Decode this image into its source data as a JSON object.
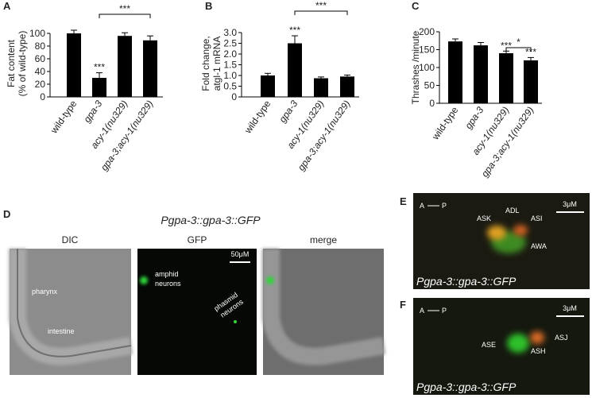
{
  "chart_data": [
    {
      "type": "bar",
      "panel": "A",
      "ylabel": [
        "Fat content",
        "(% of wild-type)"
      ],
      "categories": [
        "wild-type",
        "gpa-3",
        "acy-1(nu329)",
        "gpa-3;acy-1(nu329)"
      ],
      "values": [
        100,
        30,
        96,
        89
      ],
      "errors": [
        5,
        8,
        5,
        7
      ],
      "color": "#000000",
      "ylim": [
        0,
        110
      ],
      "yticks": [
        0,
        20,
        40,
        60,
        80,
        100
      ],
      "annotations": [
        "***",
        "***"
      ]
    },
    {
      "type": "bar",
      "panel": "B",
      "ylabel": [
        "Fold change,",
        "atgl-1 mRNA"
      ],
      "categories": [
        "wild-type",
        "gpa-3",
        "acy-1(nu329)",
        "gpa-3;acy-1(nu329)"
      ],
      "values": [
        1.0,
        2.5,
        0.87,
        0.95
      ],
      "errors": [
        0.1,
        0.35,
        0.06,
        0.07
      ],
      "color": "#000000",
      "ylim": [
        0,
        3.1
      ],
      "yticks": [
        0,
        0.5,
        {
          "value": 1,
          "label": "1.0"
        },
        1.5,
        {
          "value": 2,
          "label": "2.0"
        },
        2.5,
        {
          "value": 3,
          "label": "3.0"
        }
      ],
      "annotations": [
        "***",
        "***"
      ]
    },
    {
      "type": "bar",
      "panel": "C",
      "ylabel": [
        "Thrashes /minute"
      ],
      "categories": [
        "wild-type",
        "gpa-3",
        "acy-1(nu329)",
        "gpa-3;acy-1(nu329)"
      ],
      "values": [
        173,
        162,
        140,
        120
      ],
      "errors": [
        7,
        8,
        6,
        8
      ],
      "color": "#000000",
      "ylim": [
        0,
        210
      ],
      "yticks": [
        0,
        50,
        100,
        150,
        200
      ],
      "annotations": [
        "***",
        "***",
        "*"
      ]
    }
  ],
  "panel_d": {
    "label": "D",
    "title": "Pgpa-3::gpa-3::GFP",
    "columns": [
      "DIC",
      "GFP",
      "merge"
    ],
    "pharynx": "pharynx",
    "intestine": "intestine",
    "amphid": [
      "amphid",
      "neurons"
    ],
    "phasmid": [
      "phasmid",
      "neurons"
    ],
    "scale_bar": "50μM"
  },
  "panel_e": {
    "label": "E",
    "anterior": "A",
    "posterior": "P",
    "scale_bar": "3μM",
    "neurons": [
      "ASK",
      "ADL",
      "ASI",
      "AWA"
    ],
    "caption": "Pgpa-3::gpa-3::GFP"
  },
  "panel_f": {
    "label": "F",
    "anterior": "A",
    "posterior": "P",
    "scale_bar": "3μM",
    "neurons": [
      "ASJ",
      "ASE",
      "ASH"
    ],
    "caption": "Pgpa-3::gpa-3::GFP"
  }
}
